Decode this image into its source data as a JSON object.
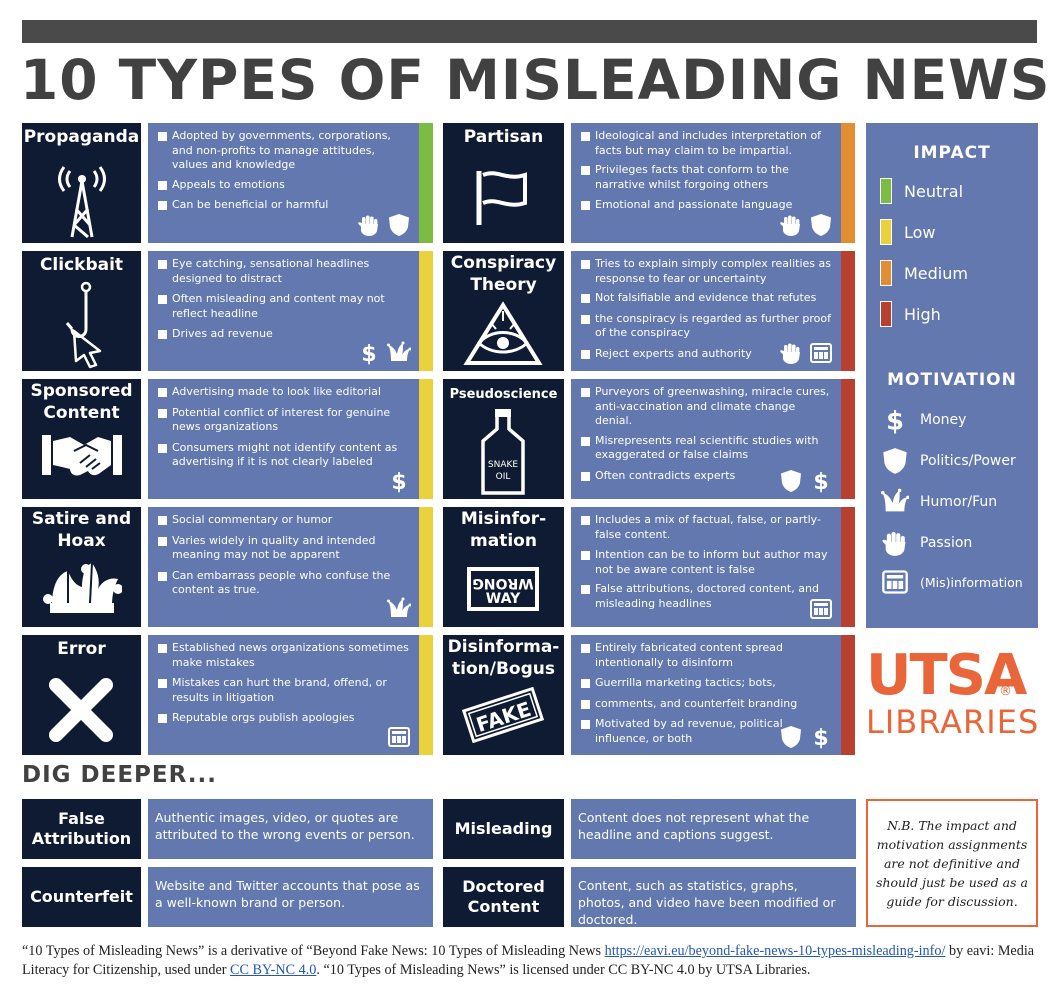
{
  "title": "10 TYPES OF MISLEADING NEWS",
  "colors": {
    "neutral": "#7bbd42",
    "low": "#e9d23c",
    "medium": "#e38d33",
    "high": "#b8402e",
    "tile": "#0f1b33",
    "panel": "#6278ae",
    "accent": "#e8663a"
  },
  "types": [
    {
      "name": "Propaganda",
      "impact": "neutral",
      "bullets": [
        "Adopted by governments, corporations, and non-profits to manage attitudes, values and knowledge",
        "Appeals to emotions",
        "Can be beneficial or harmful"
      ],
      "motivation": [
        "passion-icon",
        "politics-icon"
      ]
    },
    {
      "name": "Partisan",
      "impact": "medium",
      "bullets": [
        "Ideological and includes interpretation of facts but may claim to be impartial.",
        "Privileges facts that conform to the narrative whilst forgoing others",
        "Emotional and passionate language"
      ],
      "motivation": [
        "passion-icon",
        "politics-icon"
      ]
    },
    {
      "name": "Clickbait",
      "impact": "low",
      "bullets": [
        "Eye catching, sensational headlines designed to distract",
        "Often misleading and content may not reflect headline",
        "Drives ad revenue"
      ],
      "motivation": [
        "money-icon",
        "humor-icon"
      ]
    },
    {
      "name": "Conspiracy Theory",
      "impact": "high",
      "bullets": [
        "Tries to explain simply complex realities as response to fear or uncertainty",
        "Not falsifiable and evidence that refutes",
        "the conspiracy is regarded as further proof of the conspiracy",
        "Reject experts and authority"
      ],
      "motivation": [
        "passion-icon",
        "misinformation-icon"
      ]
    },
    {
      "name": "Sponsored Content",
      "impact": "low",
      "bullets": [
        "Advertising made to look like editorial",
        "Potential conflict of interest for genuine news organizations",
        "Consumers might not identify content as advertising if it is not clearly labeled"
      ],
      "motivation": [
        "money-icon"
      ]
    },
    {
      "name": "Pseudoscience",
      "impact": "high",
      "bullets": [
        "Purveyors of greenwashing, miracle cures, anti-vaccination and climate change denial.",
        "Misrepresents real scientific studies with exaggerated or false claims",
        "Often contradicts experts"
      ],
      "motivation": [
        "politics-icon",
        "money-icon"
      ]
    },
    {
      "name": "Satire and Hoax",
      "impact": "low",
      "bullets": [
        "Social commentary or humor",
        "Varies widely in quality and intended meaning may not be apparent",
        "Can embarrass people who confuse the content as true."
      ],
      "motivation": [
        "humor-icon"
      ]
    },
    {
      "name": "Misinfor-mation",
      "impact": "high",
      "bullets": [
        "Includes a mix of factual, false, or partly-false content.",
        "Intention can be to inform but author may not be aware content is false",
        "False attributions, doctored content, and misleading headlines"
      ],
      "motivation": [
        "misinformation-icon"
      ]
    },
    {
      "name": "Error",
      "impact": "low",
      "bullets": [
        "Established news organizations sometimes make mistakes",
        "Mistakes can hurt the brand, offend, or results in litigation",
        "Reputable orgs publish apologies"
      ],
      "motivation": [
        "misinformation-icon"
      ]
    },
    {
      "name": "Disinforma-tion/Bogus",
      "impact": "high",
      "bullets": [
        "Entirely fabricated content spread intentionally to disinform",
        "Guerrilla marketing tactics; bots,",
        "comments, and counterfeit branding",
        "Motivated by ad revenue, political influence, or both"
      ],
      "motivation": [
        "politics-icon",
        "money-icon"
      ]
    }
  ],
  "tile_text": {
    "snake_oil_1": "SNAKE",
    "snake_oil_2": "OIL",
    "wrong_way_1": "WRONG",
    "wrong_way_2": "WAY",
    "fake": "FAKE"
  },
  "legend": {
    "impact_title": "IMPACT",
    "impact": [
      {
        "label": "Neutral"
      },
      {
        "label": "Low"
      },
      {
        "label": "Medium"
      },
      {
        "label": "High"
      }
    ],
    "motivation_title": "MOTIVATION",
    "motivation": [
      {
        "label": "Money",
        "icon": "money-icon"
      },
      {
        "label": "Politics/Power",
        "icon": "politics-icon"
      },
      {
        "label": "Humor/Fun",
        "icon": "humor-icon"
      },
      {
        "label": "Passion",
        "icon": "passion-icon"
      },
      {
        "label": "(Mis)information",
        "icon": "misinformation-icon"
      }
    ]
  },
  "logo": {
    "line1": "UTSA",
    "reg": "®",
    "line2": "LIBRARIES"
  },
  "dig_deeper": {
    "title": "DIG DEEPER...",
    "items": [
      {
        "name_1": "False",
        "name_2": "Attribution",
        "desc": "Authentic images, video, or quotes are attributed to the wrong events or person."
      },
      {
        "name_1": "Misleading",
        "name_2": "",
        "desc": "Content does not represent what the headline and captions suggest."
      },
      {
        "name_1": "Counterfeit",
        "name_2": "",
        "desc": "Website and Twitter accounts that pose as a well-known brand or person."
      },
      {
        "name_1": "Doctored",
        "name_2": "Content",
        "desc": "Content, such as statistics, graphs, photos, and video have been modified or doctored."
      }
    ]
  },
  "note": "N.B. The impact and motivation assignments are not definitive and should just be used as a guide for discussion.",
  "footer": {
    "t1": "“10 Types of Misleading News” is a derivative of “Beyond Fake News: 10 Types of Misleading News ",
    "link1": "https://eavi.eu/beyond-fake-news-10-types-misleading-info/",
    "t2": " by eavi: Media Literacy for Citizenship, used under ",
    "link2": "CC BY-NC 4.0",
    "t3": ".  “10 Types of Misleading News” is licensed under CC BY-NC 4.0 by UTSA Libraries."
  }
}
